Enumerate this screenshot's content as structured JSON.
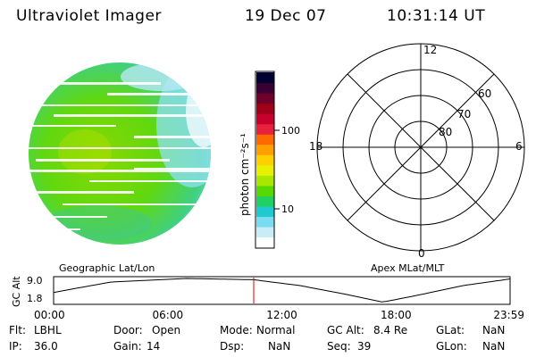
{
  "header": {
    "instrument": "Ultraviolet Imager",
    "date": "19 Dec 07",
    "time": "10:31:14 UT"
  },
  "image_panel": {
    "label": "Geographic Lat/Lon"
  },
  "colorbar": {
    "unit_label": "photon cm⁻²s⁻¹",
    "ticks": [
      "100",
      "10"
    ],
    "colors": [
      "#000033",
      "#3a0033",
      "#70002a",
      "#a00018",
      "#c8002c",
      "#e8203c",
      "#ff6a00",
      "#ffa000",
      "#ffd000",
      "#e6f000",
      "#a8e800",
      "#56d800",
      "#20d060",
      "#20c8d0",
      "#7adcf0",
      "#c8ecf8",
      "#ffffff"
    ]
  },
  "polar_panel": {
    "label": "Apex MLat/MLT",
    "mlt_labels": {
      "top": "12",
      "left": "18",
      "right": "6",
      "bottom": "0"
    },
    "lat_labels": [
      "60",
      "70",
      "80"
    ]
  },
  "altitude_plot": {
    "ylabel": "GC Alt",
    "yticks": [
      "9.0",
      "1.8"
    ],
    "xticks": [
      "00:00",
      "06:00",
      "12:00",
      "18:00",
      "23:59"
    ],
    "current_time_marker_hours": 10.52
  },
  "info": {
    "filter_label": "Flt:",
    "filter_value": "LBHL",
    "ip_label": "IP:",
    "ip_value": "36.0",
    "door_label": "Door:",
    "door_value": "Open",
    "gain_label": "Gain:",
    "gain_value": "14",
    "mode_label": "Mode:",
    "mode_value": "Normal",
    "dsp_label": "Dsp:",
    "dsp_value": "NaN",
    "gcalt_label": "GC Alt:",
    "gcalt_value": "8.4 Re",
    "seq_label": "Seq:",
    "seq_value": "39",
    "glat_label": "GLat:",
    "glat_value": "NaN",
    "glon_label": "GLon:",
    "glon_value": "NaN"
  }
}
